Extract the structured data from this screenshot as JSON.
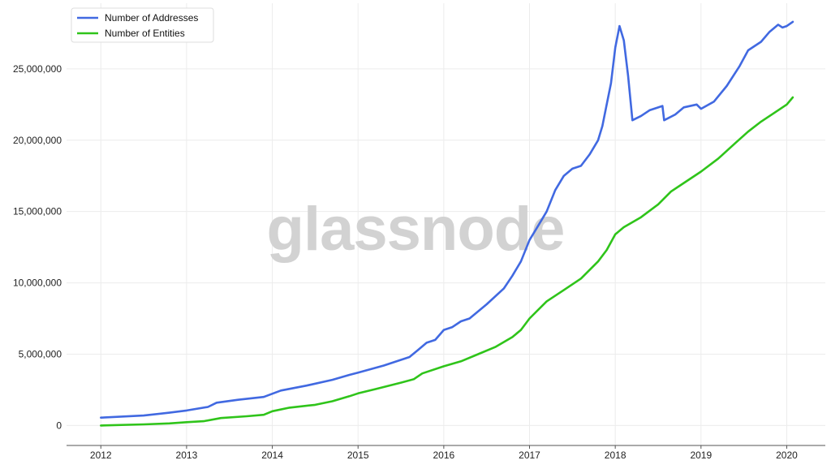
{
  "watermark": "glassnode",
  "chart_data": {
    "type": "line",
    "title": "",
    "xlabel": "",
    "ylabel": "",
    "grid": true,
    "legend_position": "top-left",
    "xlim": [
      2011.6,
      2020.45
    ],
    "ylim": [
      -1400000,
      29600000
    ],
    "x_ticks": [
      2012,
      2013,
      2014,
      2015,
      2016,
      2017,
      2018,
      2019,
      2020
    ],
    "x_tick_labels": [
      "2012",
      "2013",
      "2014",
      "2015",
      "2016",
      "2017",
      "2018",
      "2019",
      "2020"
    ],
    "y_ticks": [
      0,
      5000000,
      10000000,
      15000000,
      20000000,
      25000000
    ],
    "y_tick_labels": [
      "0",
      "5,000,000",
      "10,000,000",
      "15,000,000",
      "20,000,000",
      "25,000,000"
    ],
    "series": [
      {
        "name": "Number of Addresses",
        "color": "#4169e1",
        "points": [
          [
            2012.0,
            550000
          ],
          [
            2012.5,
            700000
          ],
          [
            2012.8,
            900000
          ],
          [
            2013.0,
            1050000
          ],
          [
            2013.25,
            1300000
          ],
          [
            2013.35,
            1600000
          ],
          [
            2013.6,
            1800000
          ],
          [
            2013.9,
            2000000
          ],
          [
            2014.1,
            2450000
          ],
          [
            2014.4,
            2800000
          ],
          [
            2014.7,
            3200000
          ],
          [
            2014.9,
            3550000
          ],
          [
            2015.0,
            3700000
          ],
          [
            2015.3,
            4200000
          ],
          [
            2015.6,
            4800000
          ],
          [
            2015.7,
            5300000
          ],
          [
            2015.8,
            5800000
          ],
          [
            2015.9,
            6000000
          ],
          [
            2016.0,
            6700000
          ],
          [
            2016.1,
            6900000
          ],
          [
            2016.2,
            7300000
          ],
          [
            2016.3,
            7500000
          ],
          [
            2016.5,
            8500000
          ],
          [
            2016.7,
            9600000
          ],
          [
            2016.8,
            10500000
          ],
          [
            2016.9,
            11500000
          ],
          [
            2017.0,
            13000000
          ],
          [
            2017.1,
            14000000
          ],
          [
            2017.2,
            15000000
          ],
          [
            2017.3,
            16500000
          ],
          [
            2017.4,
            17500000
          ],
          [
            2017.5,
            18000000
          ],
          [
            2017.6,
            18200000
          ],
          [
            2017.7,
            19000000
          ],
          [
            2017.8,
            20000000
          ],
          [
            2017.85,
            21000000
          ],
          [
            2017.9,
            22500000
          ],
          [
            2017.95,
            24000000
          ],
          [
            2018.0,
            26500000
          ],
          [
            2018.05,
            28000000
          ],
          [
            2018.1,
            27000000
          ],
          [
            2018.15,
            24500000
          ],
          [
            2018.2,
            21400000
          ],
          [
            2018.3,
            21700000
          ],
          [
            2018.4,
            22100000
          ],
          [
            2018.55,
            22400000
          ],
          [
            2018.57,
            21400000
          ],
          [
            2018.7,
            21800000
          ],
          [
            2018.8,
            22300000
          ],
          [
            2018.95,
            22500000
          ],
          [
            2019.0,
            22200000
          ],
          [
            2019.15,
            22700000
          ],
          [
            2019.3,
            23800000
          ],
          [
            2019.45,
            25200000
          ],
          [
            2019.55,
            26300000
          ],
          [
            2019.7,
            26900000
          ],
          [
            2019.8,
            27600000
          ],
          [
            2019.9,
            28100000
          ],
          [
            2019.95,
            27900000
          ],
          [
            2020.0,
            28000000
          ],
          [
            2020.07,
            28300000
          ]
        ]
      },
      {
        "name": "Number of Entities",
        "color": "#2fc41a",
        "points": [
          [
            2012.0,
            0
          ],
          [
            2012.5,
            80000
          ],
          [
            2012.8,
            150000
          ],
          [
            2013.0,
            230000
          ],
          [
            2013.2,
            300000
          ],
          [
            2013.4,
            520000
          ],
          [
            2013.7,
            650000
          ],
          [
            2013.9,
            750000
          ],
          [
            2014.0,
            1000000
          ],
          [
            2014.2,
            1250000
          ],
          [
            2014.5,
            1450000
          ],
          [
            2014.7,
            1700000
          ],
          [
            2014.9,
            2050000
          ],
          [
            2015.0,
            2250000
          ],
          [
            2015.2,
            2550000
          ],
          [
            2015.5,
            3000000
          ],
          [
            2015.65,
            3250000
          ],
          [
            2015.75,
            3650000
          ],
          [
            2016.0,
            4150000
          ],
          [
            2016.2,
            4500000
          ],
          [
            2016.4,
            5000000
          ],
          [
            2016.6,
            5500000
          ],
          [
            2016.8,
            6200000
          ],
          [
            2016.9,
            6700000
          ],
          [
            2017.0,
            7500000
          ],
          [
            2017.2,
            8700000
          ],
          [
            2017.4,
            9500000
          ],
          [
            2017.6,
            10300000
          ],
          [
            2017.8,
            11500000
          ],
          [
            2017.9,
            12300000
          ],
          [
            2018.0,
            13400000
          ],
          [
            2018.1,
            13900000
          ],
          [
            2018.3,
            14600000
          ],
          [
            2018.5,
            15500000
          ],
          [
            2018.65,
            16400000
          ],
          [
            2018.8,
            17000000
          ],
          [
            2019.0,
            17800000
          ],
          [
            2019.2,
            18700000
          ],
          [
            2019.4,
            19800000
          ],
          [
            2019.55,
            20600000
          ],
          [
            2019.7,
            21300000
          ],
          [
            2019.85,
            21900000
          ],
          [
            2020.0,
            22500000
          ],
          [
            2020.07,
            23000000
          ]
        ]
      }
    ]
  }
}
